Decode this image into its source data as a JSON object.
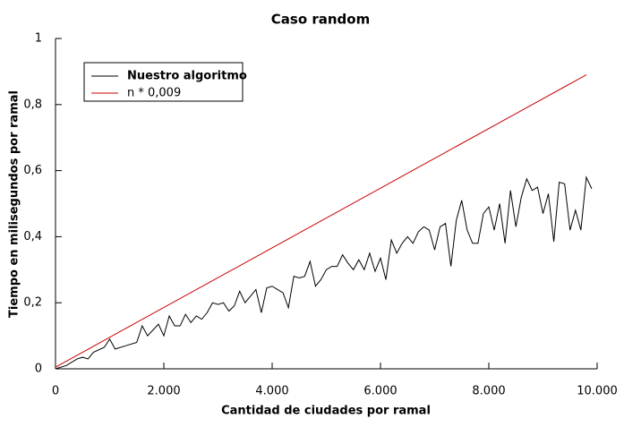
{
  "chart_data": {
    "type": "line",
    "title": "Caso random",
    "x_label": "Cantidad de ciudades por ramal",
    "y_label": "Tiempo en milisegundos por ramal",
    "xlim": [
      0,
      10000
    ],
    "xticks": [
      0,
      {
        "value": 2000,
        "label": "2.000"
      },
      {
        "value": 4000,
        "label": "4.000"
      },
      {
        "value": 6000,
        "label": "6.000"
      },
      {
        "value": 8000,
        "label": "8.000"
      },
      {
        "value": 10000,
        "label": "10.000"
      }
    ],
    "ylim": [
      0,
      1
    ],
    "yticks": [
      0,
      {
        "value": 0.2,
        "label": "0,2"
      },
      {
        "value": 0.4,
        "label": "0,4"
      },
      {
        "value": 0.6,
        "label": "0,6"
      },
      {
        "value": 0.8,
        "label": "0,8"
      },
      1
    ],
    "legend": "top-left",
    "series": [
      {
        "name": "Nuestro algoritmo",
        "color": "#000000",
        "x": [
          0,
          200,
          400,
          500,
          600,
          700,
          900,
          1000,
          1100,
          1300,
          1500,
          1600,
          1700,
          1900,
          2000,
          2100,
          2200,
          2300,
          2400,
          2500,
          2600,
          2700,
          2800,
          2900,
          3000,
          3100,
          3200,
          3300,
          3400,
          3500,
          3600,
          3700,
          3800,
          3900,
          4000,
          4100,
          4200,
          4300,
          4400,
          4500,
          4600,
          4700,
          4800,
          4900,
          5000,
          5100,
          5200,
          5300,
          5400,
          5500,
          5600,
          5700,
          5800,
          5900,
          6000,
          6100,
          6200,
          6300,
          6400,
          6500,
          6600,
          6700,
          6800,
          6900,
          7000,
          7100,
          7200,
          7300,
          7400,
          7500,
          7600,
          7700,
          7800,
          7900,
          8000,
          8100,
          8200,
          8300,
          8400,
          8500,
          8600,
          8700,
          8800,
          8900,
          9000,
          9100,
          9200,
          9300,
          9400,
          9500,
          9600,
          9700,
          9800,
          9900
        ],
        "values": [
          0,
          0.01,
          0.03,
          0.035,
          0.03,
          0.05,
          0.065,
          0.09,
          0.06,
          0.07,
          0.08,
          0.13,
          0.1,
          0.135,
          0.1,
          0.16,
          0.13,
          0.13,
          0.165,
          0.14,
          0.16,
          0.15,
          0.17,
          0.2,
          0.195,
          0.2,
          0.175,
          0.19,
          0.235,
          0.2,
          0.22,
          0.24,
          0.17,
          0.245,
          0.25,
          0.24,
          0.23,
          0.185,
          0.28,
          0.275,
          0.28,
          0.325,
          0.25,
          0.27,
          0.3,
          0.31,
          0.31,
          0.345,
          0.32,
          0.3,
          0.33,
          0.3,
          0.35,
          0.295,
          0.335,
          0.27,
          0.39,
          0.35,
          0.38,
          0.4,
          0.38,
          0.415,
          0.43,
          0.42,
          0.36,
          0.43,
          0.44,
          0.31,
          0.45,
          0.51,
          0.42,
          0.38,
          0.38,
          0.47,
          0.49,
          0.42,
          0.5,
          0.38,
          0.54,
          0.43,
          0.52,
          0.575,
          0.54,
          0.55,
          0.47,
          0.53,
          0.385,
          0.565,
          0.56,
          0.42,
          0.48,
          0.42,
          0.58,
          0.545
        ]
      },
      {
        "name": "n * 0,009",
        "color": "#cc0000",
        "x": [
          0,
          9800
        ],
        "values": [
          0.005,
          0.89
        ]
      }
    ]
  }
}
